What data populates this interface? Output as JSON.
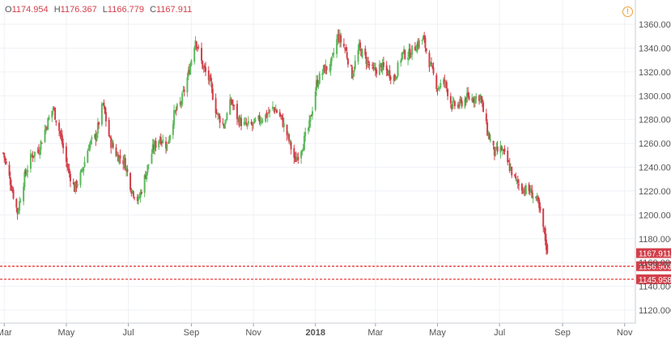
{
  "header": {
    "o_label": "O",
    "o_value": "1174.954",
    "h_label": "H",
    "h_value": "1176.367",
    "l_label": "L",
    "l_value": "1166.779",
    "c_label": "C",
    "c_value": "1167.911",
    "info_icon": "!"
  },
  "colors": {
    "up": "#5db85c",
    "down": "#d23f4a",
    "grid": "#eef1f5",
    "price_tag": "#d23f4a",
    "dashed_line": "#e8272b",
    "axis_text": "#555555"
  },
  "chart_data": {
    "type": "candlestick",
    "y_axis_position": "right",
    "ylim": [
      1108,
      1366
    ],
    "y_ticks": [
      "1360.000",
      "1340.000",
      "1320.000",
      "1300.000",
      "1280.000",
      "1260.000",
      "1240.000",
      "1220.000",
      "1200.000",
      "1180.000",
      "1160.000",
      "1140.000",
      "1120.000"
    ],
    "x_ticks": [
      "Mar",
      "May",
      "Jul",
      "Sep",
      "Nov",
      "2018",
      "Mar",
      "May",
      "Jul",
      "Sep",
      "Nov"
    ],
    "x_tick_dates": [
      "2017-03-01",
      "2017-05-01",
      "2017-07-01",
      "2017-09-01",
      "2017-11-01",
      "2018-01-01",
      "2018-03-01",
      "2018-05-01",
      "2018-07-01",
      "2018-09-01",
      "2018-11-01"
    ],
    "x_range": [
      "2017-02-28",
      "2018-11-06"
    ],
    "price_levels": [
      {
        "value": 1167.911,
        "label": "1167.911",
        "style": "solid-tag"
      },
      {
        "value": 1156.903,
        "label": "1156.903",
        "style": "dashed"
      },
      {
        "value": 1145.958,
        "label": "1145.958",
        "style": "dashed"
      }
    ],
    "last_candle": {
      "open": 1174.954,
      "high": 1176.367,
      "low": 1166.779,
      "close": 1167.911
    },
    "close_series": [
      [
        "2017-02-28",
        1252
      ],
      [
        "2017-03-07",
        1228
      ],
      [
        "2017-03-14",
        1202
      ],
      [
        "2017-03-21",
        1232
      ],
      [
        "2017-03-28",
        1250
      ],
      [
        "2017-04-04",
        1255
      ],
      [
        "2017-04-11",
        1274
      ],
      [
        "2017-04-18",
        1290
      ],
      [
        "2017-04-25",
        1268
      ],
      [
        "2017-05-02",
        1240
      ],
      [
        "2017-05-09",
        1222
      ],
      [
        "2017-05-16",
        1235
      ],
      [
        "2017-05-23",
        1258
      ],
      [
        "2017-05-30",
        1266
      ],
      [
        "2017-06-06",
        1293
      ],
      [
        "2017-06-13",
        1262
      ],
      [
        "2017-06-20",
        1250
      ],
      [
        "2017-06-27",
        1245
      ],
      [
        "2017-07-04",
        1222
      ],
      [
        "2017-07-11",
        1212
      ],
      [
        "2017-07-18",
        1234
      ],
      [
        "2017-07-25",
        1255
      ],
      [
        "2017-08-01",
        1265
      ],
      [
        "2017-08-08",
        1258
      ],
      [
        "2017-08-15",
        1284
      ],
      [
        "2017-08-22",
        1295
      ],
      [
        "2017-08-29",
        1318
      ],
      [
        "2017-09-05",
        1348
      ],
      [
        "2017-09-12",
        1325
      ],
      [
        "2017-09-19",
        1312
      ],
      [
        "2017-09-26",
        1285
      ],
      [
        "2017-10-03",
        1275
      ],
      [
        "2017-10-10",
        1296
      ],
      [
        "2017-10-17",
        1280
      ],
      [
        "2017-10-24",
        1275
      ],
      [
        "2017-10-31",
        1275
      ],
      [
        "2017-11-07",
        1280
      ],
      [
        "2017-11-14",
        1284
      ],
      [
        "2017-11-21",
        1290
      ],
      [
        "2017-11-28",
        1282
      ],
      [
        "2017-12-05",
        1265
      ],
      [
        "2017-12-12",
        1245
      ],
      [
        "2017-12-19",
        1258
      ],
      [
        "2017-12-26",
        1275
      ],
      [
        "2018-01-02",
        1310
      ],
      [
        "2018-01-09",
        1322
      ],
      [
        "2018-01-16",
        1325
      ],
      [
        "2018-01-23",
        1350
      ],
      [
        "2018-01-30",
        1340
      ],
      [
        "2018-02-06",
        1318
      ],
      [
        "2018-02-13",
        1340
      ],
      [
        "2018-02-20",
        1330
      ],
      [
        "2018-02-27",
        1320
      ],
      [
        "2018-03-06",
        1325
      ],
      [
        "2018-03-13",
        1320
      ],
      [
        "2018-03-20",
        1315
      ],
      [
        "2018-03-27",
        1335
      ],
      [
        "2018-04-03",
        1335
      ],
      [
        "2018-04-10",
        1342
      ],
      [
        "2018-04-17",
        1348
      ],
      [
        "2018-04-24",
        1325
      ],
      [
        "2018-05-01",
        1307
      ],
      [
        "2018-05-08",
        1312
      ],
      [
        "2018-05-15",
        1292
      ],
      [
        "2018-05-22",
        1292
      ],
      [
        "2018-05-29",
        1298
      ],
      [
        "2018-06-05",
        1298
      ],
      [
        "2018-06-12",
        1300
      ],
      [
        "2018-06-19",
        1270
      ],
      [
        "2018-06-26",
        1252
      ],
      [
        "2018-07-03",
        1255
      ],
      [
        "2018-07-10",
        1242
      ],
      [
        "2018-07-17",
        1228
      ],
      [
        "2018-07-24",
        1222
      ],
      [
        "2018-07-31",
        1220
      ],
      [
        "2018-08-07",
        1212
      ],
      [
        "2018-08-14",
        1185
      ],
      [
        "2018-08-17",
        1167.911
      ]
    ]
  }
}
